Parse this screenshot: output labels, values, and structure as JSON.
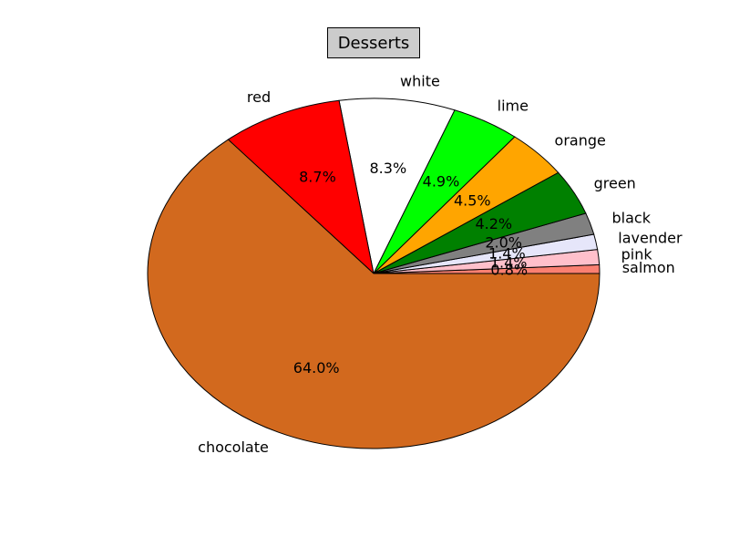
{
  "chart_data": {
    "type": "pie",
    "title": "Desserts",
    "start_angle_deg": 0,
    "direction": "counterclockwise",
    "slices": [
      {
        "label": "salmon",
        "percent": "0.8%",
        "value": 0.8,
        "color": "#fa8072"
      },
      {
        "label": "pink",
        "percent": "1.4%",
        "value": 1.4,
        "color": "#ffc0cb"
      },
      {
        "label": "lavender",
        "percent": "1.4%",
        "value": 1.4,
        "color": "#e6e6fa"
      },
      {
        "label": "black",
        "percent": "2.0%",
        "value": 2.0,
        "color": "#808080"
      },
      {
        "label": "green",
        "percent": "4.2%",
        "value": 4.2,
        "color": "#008000"
      },
      {
        "label": "orange",
        "percent": "4.5%",
        "value": 4.5,
        "color": "#ffa500"
      },
      {
        "label": "lime",
        "percent": "4.9%",
        "value": 4.9,
        "color": "#00ff00"
      },
      {
        "label": "white",
        "percent": "8.3%",
        "value": 8.3,
        "color": "#ffffff"
      },
      {
        "label": "red",
        "percent": "8.7%",
        "value": 8.7,
        "color": "#ff0000"
      },
      {
        "label": "chocolate",
        "percent": "64.0%",
        "value": 64.0,
        "color": "#d2691e"
      }
    ]
  }
}
